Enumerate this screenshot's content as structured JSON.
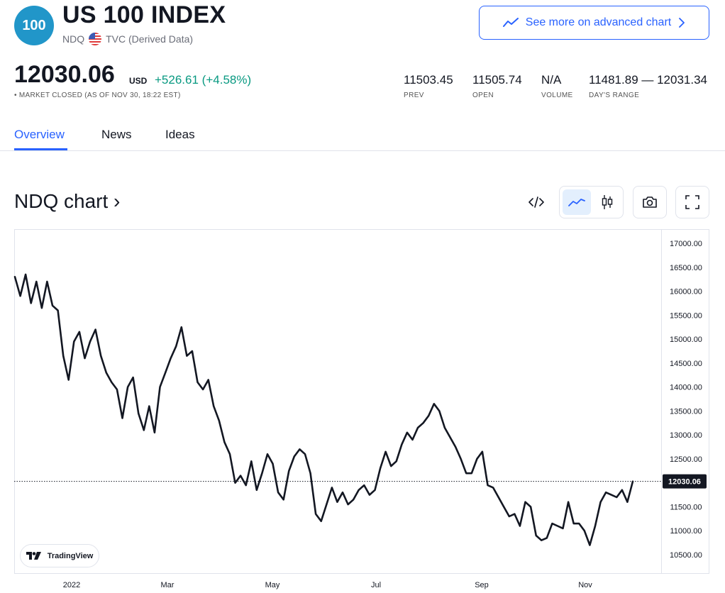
{
  "symbol": {
    "badge": "100",
    "title": "US 100 INDEX",
    "ticker": "NDQ",
    "source": "TVC (Derived Data)",
    "flag_icon": "us-flag-icon"
  },
  "advanced_chart_button": {
    "label": "See more on advanced chart",
    "color": "#2962ff"
  },
  "quote": {
    "price": "12030.06",
    "currency": "USD",
    "change": "+526.61",
    "change_percent": "(+4.58%)",
    "change_color": "#089981",
    "status": "• MARKET CLOSED (AS OF NOV 30, 18:22 EST)"
  },
  "stats": [
    {
      "value": "11503.45",
      "label": "PREV"
    },
    {
      "value": "11505.74",
      "label": "OPEN"
    },
    {
      "value": "N/A",
      "label": "VOLUME"
    },
    {
      "value": "11481.89 — 12031.34",
      "label": "DAY'S RANGE"
    }
  ],
  "tabs": [
    {
      "label": "Overview",
      "active": true
    },
    {
      "label": "News",
      "active": false
    },
    {
      "label": "Ideas",
      "active": false
    }
  ],
  "chart_header": {
    "title": "NDQ chart ›"
  },
  "toolbar": {
    "embed_icon": "code-icon",
    "line_icon": "line-chart-icon",
    "candle_icon": "candlestick-icon",
    "snapshot_icon": "camera-icon",
    "fullscreen_icon": "fullscreen-icon"
  },
  "tradingview_badge": {
    "label": "TradingView"
  },
  "chart_data": {
    "type": "line",
    "title": "",
    "xlabel": "",
    "ylabel": "",
    "x_tick_labels": [
      "2022",
      "Mar",
      "May",
      "Jul",
      "Sep",
      "Nov"
    ],
    "y_tick_labels": [
      "17000.00",
      "16500.00",
      "16000.00",
      "15500.00",
      "15000.00",
      "14500.00",
      "14000.00",
      "13500.00",
      "13000.00",
      "12500.00",
      "12000.00",
      "11500.00",
      "11000.00",
      "10500.00"
    ],
    "ylim": [
      10500,
      17000
    ],
    "last_value_label": "12030.06",
    "last_value": 12030.06,
    "line_color": "#131722",
    "series": [
      {
        "x": [
          "Dec 31",
          "Jan 3",
          "Jan 5",
          "Jan 7",
          "Jan 10",
          "Jan 12",
          "Jan 14",
          "Jan 18",
          "Jan 20",
          "Jan 24",
          "Jan 26",
          "Jan 28",
          "Feb 1",
          "Feb 3",
          "Feb 7",
          "Feb 9",
          "Feb 11",
          "Feb 15",
          "Feb 17",
          "Feb 22",
          "Feb 24",
          "Feb 28",
          "Mar 2",
          "Mar 4",
          "Mar 8",
          "Mar 10",
          "Mar 14",
          "Mar 16",
          "Mar 18",
          "Mar 22",
          "Mar 24",
          "Mar 29",
          "Apr 1",
          "Apr 5",
          "Apr 7",
          "Apr 11",
          "Apr 13",
          "Apr 19",
          "Apr 21",
          "Apr 25",
          "Apr 27",
          "Apr 29",
          "May 3",
          "May 5",
          "May 9",
          "May 11",
          "May 13",
          "May 17",
          "May 19",
          "May 23",
          "May 25",
          "May 27",
          "Jun 1",
          "Jun 3",
          "Jun 7",
          "Jun 9",
          "Jun 13",
          "Jun 15",
          "Jun 17",
          "Jun 21",
          "Jun 23",
          "Jun 27",
          "Jun 29",
          "Jul 1",
          "Jul 6",
          "Jul 8",
          "Jul 12",
          "Jul 14",
          "Jul 18",
          "Jul 20",
          "Jul 22",
          "Jul 26",
          "Jul 28",
          "Aug 1",
          "Aug 3",
          "Aug 5",
          "Aug 9",
          "Aug 11",
          "Aug 15",
          "Aug 17",
          "Aug 19",
          "Aug 23",
          "Aug 25",
          "Aug 29",
          "Aug 31",
          "Sep 2",
          "Sep 7",
          "Sep 9",
          "Sep 13",
          "Sep 15",
          "Sep 19",
          "Sep 21",
          "Sep 23",
          "Sep 27",
          "Sep 29",
          "Oct 3",
          "Oct 5",
          "Oct 7",
          "Oct 11",
          "Oct 13",
          "Oct 17",
          "Oct 19",
          "Oct 21",
          "Oct 25",
          "Oct 27",
          "Oct 31",
          "Nov 2",
          "Nov 4",
          "Nov 8",
          "Nov 10",
          "Nov 14",
          "Nov 16",
          "Nov 18",
          "Nov 22",
          "Nov 25",
          "Nov 30"
        ],
        "y": [
          16300,
          15900,
          16350,
          15750,
          16200,
          15650,
          16200,
          15700,
          15600,
          14650,
          14150,
          14950,
          15150,
          14600,
          14950,
          15200,
          14650,
          14300,
          14100,
          13950,
          13350,
          14000,
          14200,
          13450,
          13100,
          13600,
          13050,
          14000,
          14300,
          14600,
          14850,
          15250,
          14650,
          14750,
          14100,
          13950,
          14150,
          13600,
          13300,
          12850,
          12600,
          12000,
          12150,
          11950,
          12450,
          11850,
          12200,
          12600,
          12400,
          11800,
          11650,
          12250,
          12550,
          12700,
          12600,
          12200,
          11350,
          11200,
          11550,
          11900,
          11600,
          11800,
          11550,
          11650,
          11850,
          11950,
          11750,
          11850,
          12300,
          12650,
          12350,
          12450,
          12800,
          13050,
          12900,
          13150,
          13250,
          13400,
          13650,
          13500,
          13150,
          12950,
          12750,
          12500,
          12200,
          12200,
          12500,
          12650,
          11950,
          11900,
          11700,
          11500,
          11300,
          11350,
          11100,
          11600,
          11500,
          10900,
          10800,
          10850,
          11150,
          11100,
          11050,
          11600,
          11150,
          11150,
          11000,
          10700,
          11100,
          11600,
          11800,
          11750,
          11700,
          11850,
          11600,
          12030.06
        ]
      }
    ],
    "grid": false
  }
}
